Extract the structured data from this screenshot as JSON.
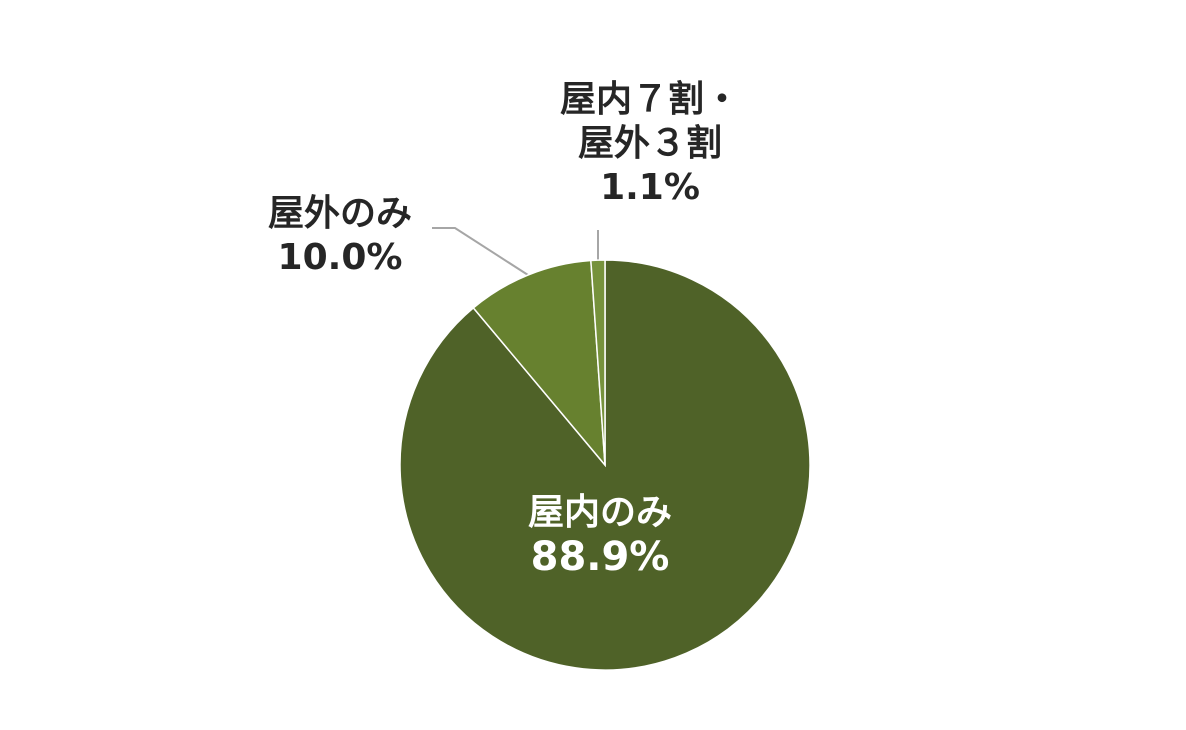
{
  "chart_data": {
    "type": "pie",
    "categories": [
      "屋内のみ",
      "屋外のみ",
      "屋内７割・\n屋外３割"
    ],
    "values": [
      88.9,
      10.0,
      1.1
    ],
    "value_labels": [
      "88.9%",
      "10.0%",
      "1.1%"
    ],
    "colors": [
      "#4f6228",
      "#67812f",
      "#76923c"
    ]
  }
}
